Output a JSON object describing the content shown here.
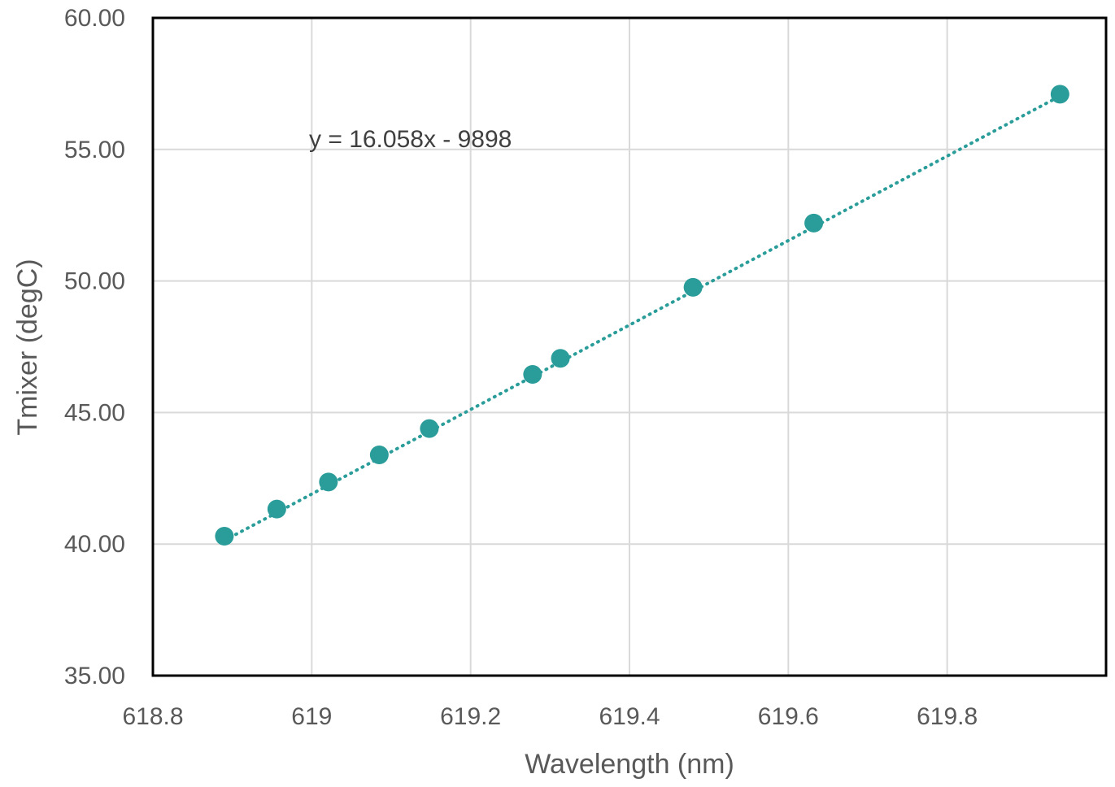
{
  "chart_data": {
    "type": "scatter",
    "title": "",
    "xlabel": "Wavelength (nm)",
    "ylabel": "Tmixer (degC)",
    "xlim": [
      618.8,
      620.0
    ],
    "ylim": [
      35.0,
      60.0
    ],
    "x_ticks": [
      618.8,
      619.0,
      619.2,
      619.4,
      619.6,
      619.8
    ],
    "x_tick_labels": [
      "618.8",
      "619",
      "619.2",
      "619.4",
      "619.6",
      "619.8"
    ],
    "y_ticks": [
      35,
      40,
      45,
      50,
      55,
      60
    ],
    "y_tick_labels": [
      "35.00",
      "40.00",
      "45.00",
      "50.00",
      "55.00",
      "60.00"
    ],
    "grid": true,
    "series": [
      {
        "name": "Tmixer",
        "color": "#2a9d9a",
        "x": [
          618.89,
          618.956,
          619.021,
          619.085,
          619.148,
          619.278,
          619.313,
          619.48,
          619.632,
          619.942
        ],
        "y": [
          40.3,
          41.33,
          42.36,
          43.39,
          44.39,
          46.45,
          47.06,
          49.76,
          52.2,
          57.1
        ]
      }
    ],
    "trendline": {
      "type": "linear",
      "slope": 16.058,
      "intercept": -9898,
      "x_range": [
        618.89,
        619.942
      ],
      "style": "dotted",
      "color": "#2a9d9a",
      "equation_label": "y = 16.058x - 9898"
    }
  }
}
